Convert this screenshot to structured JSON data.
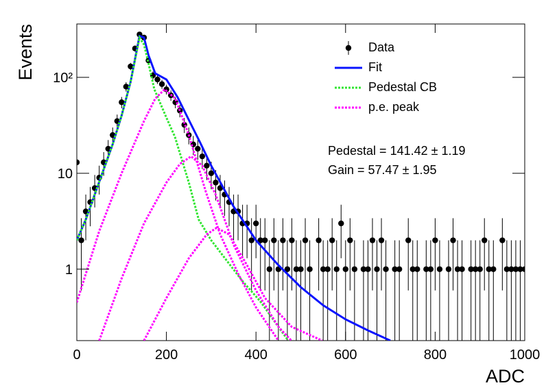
{
  "chart_data": {
    "type": "scatter",
    "x_label": "ADC",
    "y_label": "Events",
    "log_y": true,
    "xlim": [
      0,
      1000
    ],
    "ylim": [
      0.18,
      360
    ],
    "xticks": [
      0,
      200,
      400,
      600,
      800,
      1000
    ],
    "yticks": [
      1,
      10,
      {
        "value": 100,
        "label": "10²"
      }
    ],
    "annotations": [
      "Pedestal = 141.42 ± 1.19",
      "Gain = 57.47 ± 1.95"
    ],
    "series": [
      {
        "name": "Data",
        "type": "errorbar",
        "color": "#000000",
        "x": [
          0,
          10,
          20,
          30,
          40,
          50,
          60,
          70,
          80,
          90,
          100,
          110,
          120,
          130,
          140,
          150,
          160,
          170,
          180,
          190,
          200,
          210,
          220,
          230,
          240,
          250,
          260,
          270,
          280,
          290,
          300,
          310,
          320,
          330,
          340,
          350,
          360,
          370,
          380,
          390,
          400,
          410,
          420,
          430,
          440,
          450,
          460,
          470,
          480,
          490,
          500,
          510,
          520,
          530,
          540,
          550,
          560,
          570,
          580,
          590,
          600,
          610,
          620,
          630,
          640,
          650,
          660,
          670,
          680,
          690,
          700,
          710,
          720,
          730,
          740,
          750,
          760,
          770,
          780,
          790,
          800,
          810,
          820,
          830,
          840,
          850,
          860,
          870,
          880,
          890,
          900,
          910,
          920,
          930,
          940,
          950,
          960,
          970,
          980,
          990,
          1000
        ],
        "values": [
          13,
          2,
          4,
          5,
          7,
          9,
          13,
          18,
          25,
          35,
          55,
          80,
          130,
          200,
          280,
          260,
          150,
          105,
          95,
          85,
          75,
          65,
          55,
          45,
          32,
          25,
          20,
          18,
          15,
          12,
          10,
          8,
          7,
          6,
          5,
          4,
          4,
          3,
          3,
          2,
          3,
          2,
          2,
          1,
          2,
          1,
          2,
          1,
          2,
          1,
          1,
          2,
          1,
          null,
          2,
          1,
          1,
          2,
          1,
          3,
          1,
          2,
          1,
          null,
          1,
          1,
          2,
          1,
          2,
          1,
          null,
          1,
          1,
          null,
          2,
          1,
          1,
          null,
          1,
          1,
          2,
          1,
          null,
          1,
          2,
          1,
          1,
          null,
          1,
          1,
          1,
          2,
          1,
          1,
          null,
          2,
          1,
          1,
          1,
          1,
          1
        ],
        "errors": [
          3.6,
          1.4,
          2,
          2.2,
          2.6,
          3,
          3.6,
          4.2,
          5,
          5.9,
          7.4,
          8.9,
          11.4,
          14.1,
          16.7,
          16.1,
          12.2,
          10.2,
          9.7,
          9.2,
          8.7,
          8.1,
          7.4,
          6.7,
          5.7,
          5,
          4.5,
          4.2,
          3.9,
          3.5,
          3.2,
          2.8,
          2.6,
          2.4,
          2.2,
          2,
          2,
          1.7,
          1.7,
          1.4,
          1.7,
          1.4,
          1.4,
          1,
          1.4,
          1,
          1.4,
          1,
          1.4,
          1,
          1,
          1.4,
          1,
          null,
          1.4,
          1,
          1,
          1.4,
          1,
          1.7,
          1,
          1.4,
          1,
          null,
          1,
          1,
          1.4,
          1,
          1.4,
          1,
          null,
          1,
          1,
          null,
          1.4,
          1,
          1,
          null,
          1,
          1,
          1.4,
          1,
          null,
          1,
          1.4,
          1,
          1,
          null,
          1,
          1,
          1,
          1.4,
          1,
          1,
          null,
          1.4,
          1,
          1,
          1,
          1,
          1
        ]
      },
      {
        "name": "Fit",
        "type": "line",
        "color": "#0a14ff",
        "dashed": false,
        "x": [
          0,
          20,
          40,
          60,
          80,
          100,
          120,
          140,
          150,
          160,
          175,
          200,
          225,
          250,
          275,
          300,
          350,
          400,
          450,
          500,
          550,
          600,
          650,
          700
        ],
        "values": [
          2,
          3.3,
          6,
          11,
          20,
          40,
          90,
          270,
          260,
          170,
          110,
          95,
          62,
          36,
          21,
          12,
          4.5,
          2.0,
          1.1,
          0.65,
          0.42,
          0.3,
          0.23,
          0.18
        ]
      },
      {
        "name": "Pedestal CB",
        "type": "line",
        "color": "#33e633",
        "dashed": true,
        "x": [
          0,
          20,
          40,
          60,
          80,
          100,
          120,
          140,
          150,
          160,
          173,
          200,
          219,
          250,
          272,
          300,
          334,
          370,
          410,
          472
        ],
        "values": [
          2,
          3.3,
          6,
          11,
          20,
          40,
          90,
          260,
          220,
          140,
          75,
          38,
          24,
          8,
          3.3,
          2.0,
          1.24,
          0.75,
          0.46,
          0.18
        ]
      },
      {
        "name": "p.e. peak",
        "type": "line",
        "color": "#ff00ff",
        "dashed": true,
        "x": [
          0,
          50,
          100,
          150,
          175,
          196,
          220,
          250,
          288,
          320,
          360,
          400,
          450
        ],
        "values": [
          0.45,
          2.5,
          10,
          35,
          60,
          75,
          60,
          25,
          6.4,
          2.3,
          0.9,
          0.4,
          0.18
        ]
      },
      {
        "type": "line",
        "color": "#ff00ff",
        "dashed": true,
        "x": [
          50,
          100,
          150,
          200,
          230,
          255,
          280,
          310,
          350,
          400,
          450,
          479
        ],
        "values": [
          0.18,
          0.8,
          3,
          8,
          12.5,
          15,
          12,
          6,
          1.8,
          0.6,
          0.25,
          0.18
        ]
      },
      {
        "type": "line",
        "color": "#ff00ff",
        "dashed": true,
        "x": [
          150,
          200,
          250,
          290,
          312,
          340,
          380,
          420,
          480,
          548
        ],
        "values": [
          0.18,
          0.5,
          1.3,
          2.3,
          2.7,
          2.3,
          1.1,
          0.5,
          0.25,
          0.18
        ]
      }
    ]
  }
}
